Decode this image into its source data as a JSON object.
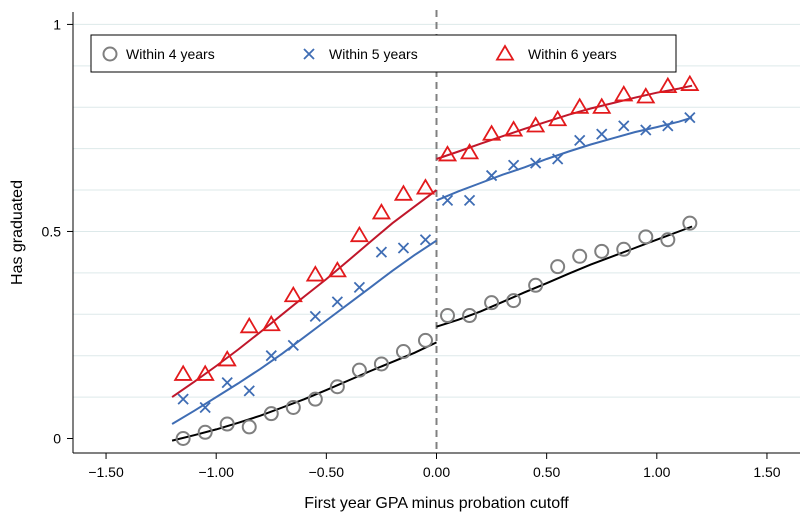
{
  "chart_data": {
    "type": "scatter",
    "title": "",
    "xlabel": "First year GPA minus probation cutoff",
    "ylabel": "Has graduated",
    "xlim": [
      -1.65,
      1.65
    ],
    "ylim": [
      -0.035,
      1.03
    ],
    "x_ticks": [
      -1.5,
      -1.0,
      -0.5,
      0.0,
      0.5,
      1.0,
      1.5
    ],
    "x_tick_labels": [
      "−1.50",
      "−1.00",
      "−0.50",
      "0.00",
      "0.50",
      "1.00",
      "1.50"
    ],
    "y_ticks": [
      0,
      0.5,
      1
    ],
    "y_tick_labels": [
      "0",
      "0.5",
      "1"
    ],
    "cutoff_x": 0,
    "grid": "horizontal",
    "legend_position": "top-left",
    "series": [
      {
        "name": "Within 4 years",
        "marker": "circle",
        "color": "#7f7f7f",
        "fit_color": "#000000",
        "x": [
          -1.15,
          -1.05,
          -0.95,
          -0.85,
          -0.75,
          -0.65,
          -0.55,
          -0.45,
          -0.35,
          -0.25,
          -0.15,
          -0.05,
          0.05,
          0.15,
          0.25,
          0.35,
          0.45,
          0.55,
          0.65,
          0.75,
          0.85,
          0.95,
          1.05,
          1.15
        ],
        "y": [
          0.0,
          0.015,
          0.035,
          0.028,
          0.06,
          0.075,
          0.095,
          0.125,
          0.165,
          0.18,
          0.21,
          0.237,
          0.297,
          0.297,
          0.328,
          0.333,
          0.37,
          0.415,
          0.44,
          0.452,
          0.457,
          0.487,
          0.48,
          0.52
        ],
        "fit_left": {
          "x": [
            -1.2,
            -1.1,
            -1.0,
            -0.9,
            -0.8,
            -0.7,
            -0.6,
            -0.5,
            -0.4,
            -0.3,
            -0.2,
            -0.1,
            0.0
          ],
          "y": [
            -0.005,
            0.008,
            0.022,
            0.038,
            0.055,
            0.075,
            0.095,
            0.117,
            0.14,
            0.163,
            0.185,
            0.207,
            0.232
          ]
        },
        "fit_right": {
          "x": [
            0.0,
            0.1,
            0.2,
            0.3,
            0.4,
            0.5,
            0.6,
            0.7,
            0.8,
            0.9,
            1.0,
            1.1,
            1.16
          ],
          "y": [
            0.27,
            0.287,
            0.307,
            0.33,
            0.353,
            0.375,
            0.398,
            0.42,
            0.44,
            0.46,
            0.48,
            0.5,
            0.512
          ]
        }
      },
      {
        "name": "Within 5 years",
        "marker": "x",
        "color": "#3f6db4",
        "fit_color": "#3f6db4",
        "x": [
          -1.15,
          -1.05,
          -0.95,
          -0.85,
          -0.75,
          -0.65,
          -0.55,
          -0.45,
          -0.35,
          -0.25,
          -0.15,
          -0.05,
          0.05,
          0.15,
          0.25,
          0.35,
          0.45,
          0.55,
          0.65,
          0.75,
          0.85,
          0.95,
          1.05,
          1.15
        ],
        "y": [
          0.095,
          0.075,
          0.135,
          0.115,
          0.2,
          0.225,
          0.295,
          0.33,
          0.365,
          0.45,
          0.46,
          0.48,
          0.575,
          0.575,
          0.635,
          0.66,
          0.665,
          0.675,
          0.72,
          0.735,
          0.755,
          0.745,
          0.755,
          0.775
        ],
        "fit_left": {
          "x": [
            -1.2,
            -1.1,
            -1.0,
            -0.9,
            -0.8,
            -0.7,
            -0.6,
            -0.5,
            -0.4,
            -0.3,
            -0.2,
            -0.1,
            0.0
          ],
          "y": [
            0.035,
            0.067,
            0.1,
            0.133,
            0.168,
            0.205,
            0.245,
            0.285,
            0.325,
            0.365,
            0.405,
            0.443,
            0.478
          ]
        },
        "fit_right": {
          "x": [
            0.0,
            0.1,
            0.2,
            0.3,
            0.4,
            0.5,
            0.6,
            0.7,
            0.8,
            0.9,
            1.0,
            1.1,
            1.16
          ],
          "y": [
            0.575,
            0.597,
            0.617,
            0.637,
            0.655,
            0.675,
            0.693,
            0.71,
            0.725,
            0.74,
            0.752,
            0.765,
            0.775
          ]
        }
      },
      {
        "name": "Within 6 years",
        "marker": "triangle",
        "color": "#e31a1c",
        "fit_color": "#c0172b",
        "x": [
          -1.15,
          -1.05,
          -0.95,
          -0.85,
          -0.75,
          -0.65,
          -0.55,
          -0.45,
          -0.35,
          -0.25,
          -0.15,
          -0.05,
          0.05,
          0.15,
          0.25,
          0.35,
          0.45,
          0.55,
          0.65,
          0.75,
          0.85,
          0.95,
          1.05,
          1.15
        ],
        "y": [
          0.155,
          0.155,
          0.19,
          0.27,
          0.275,
          0.345,
          0.395,
          0.405,
          0.49,
          0.545,
          0.59,
          0.605,
          0.685,
          0.69,
          0.735,
          0.745,
          0.755,
          0.77,
          0.8,
          0.8,
          0.83,
          0.825,
          0.85,
          0.855
        ],
        "fit_left": {
          "x": [
            -1.2,
            -1.1,
            -1.0,
            -0.9,
            -0.8,
            -0.7,
            -0.6,
            -0.5,
            -0.4,
            -0.3,
            -0.2,
            -0.1,
            0.0
          ],
          "y": [
            0.1,
            0.137,
            0.175,
            0.215,
            0.257,
            0.3,
            0.343,
            0.385,
            0.43,
            0.475,
            0.52,
            0.56,
            0.6
          ]
        },
        "fit_right": {
          "x": [
            0.0,
            0.1,
            0.2,
            0.3,
            0.4,
            0.5,
            0.6,
            0.7,
            0.8,
            0.9,
            1.0,
            1.1,
            1.16
          ],
          "y": [
            0.675,
            0.693,
            0.712,
            0.73,
            0.748,
            0.765,
            0.782,
            0.797,
            0.81,
            0.823,
            0.835,
            0.845,
            0.852
          ]
        }
      }
    ]
  }
}
